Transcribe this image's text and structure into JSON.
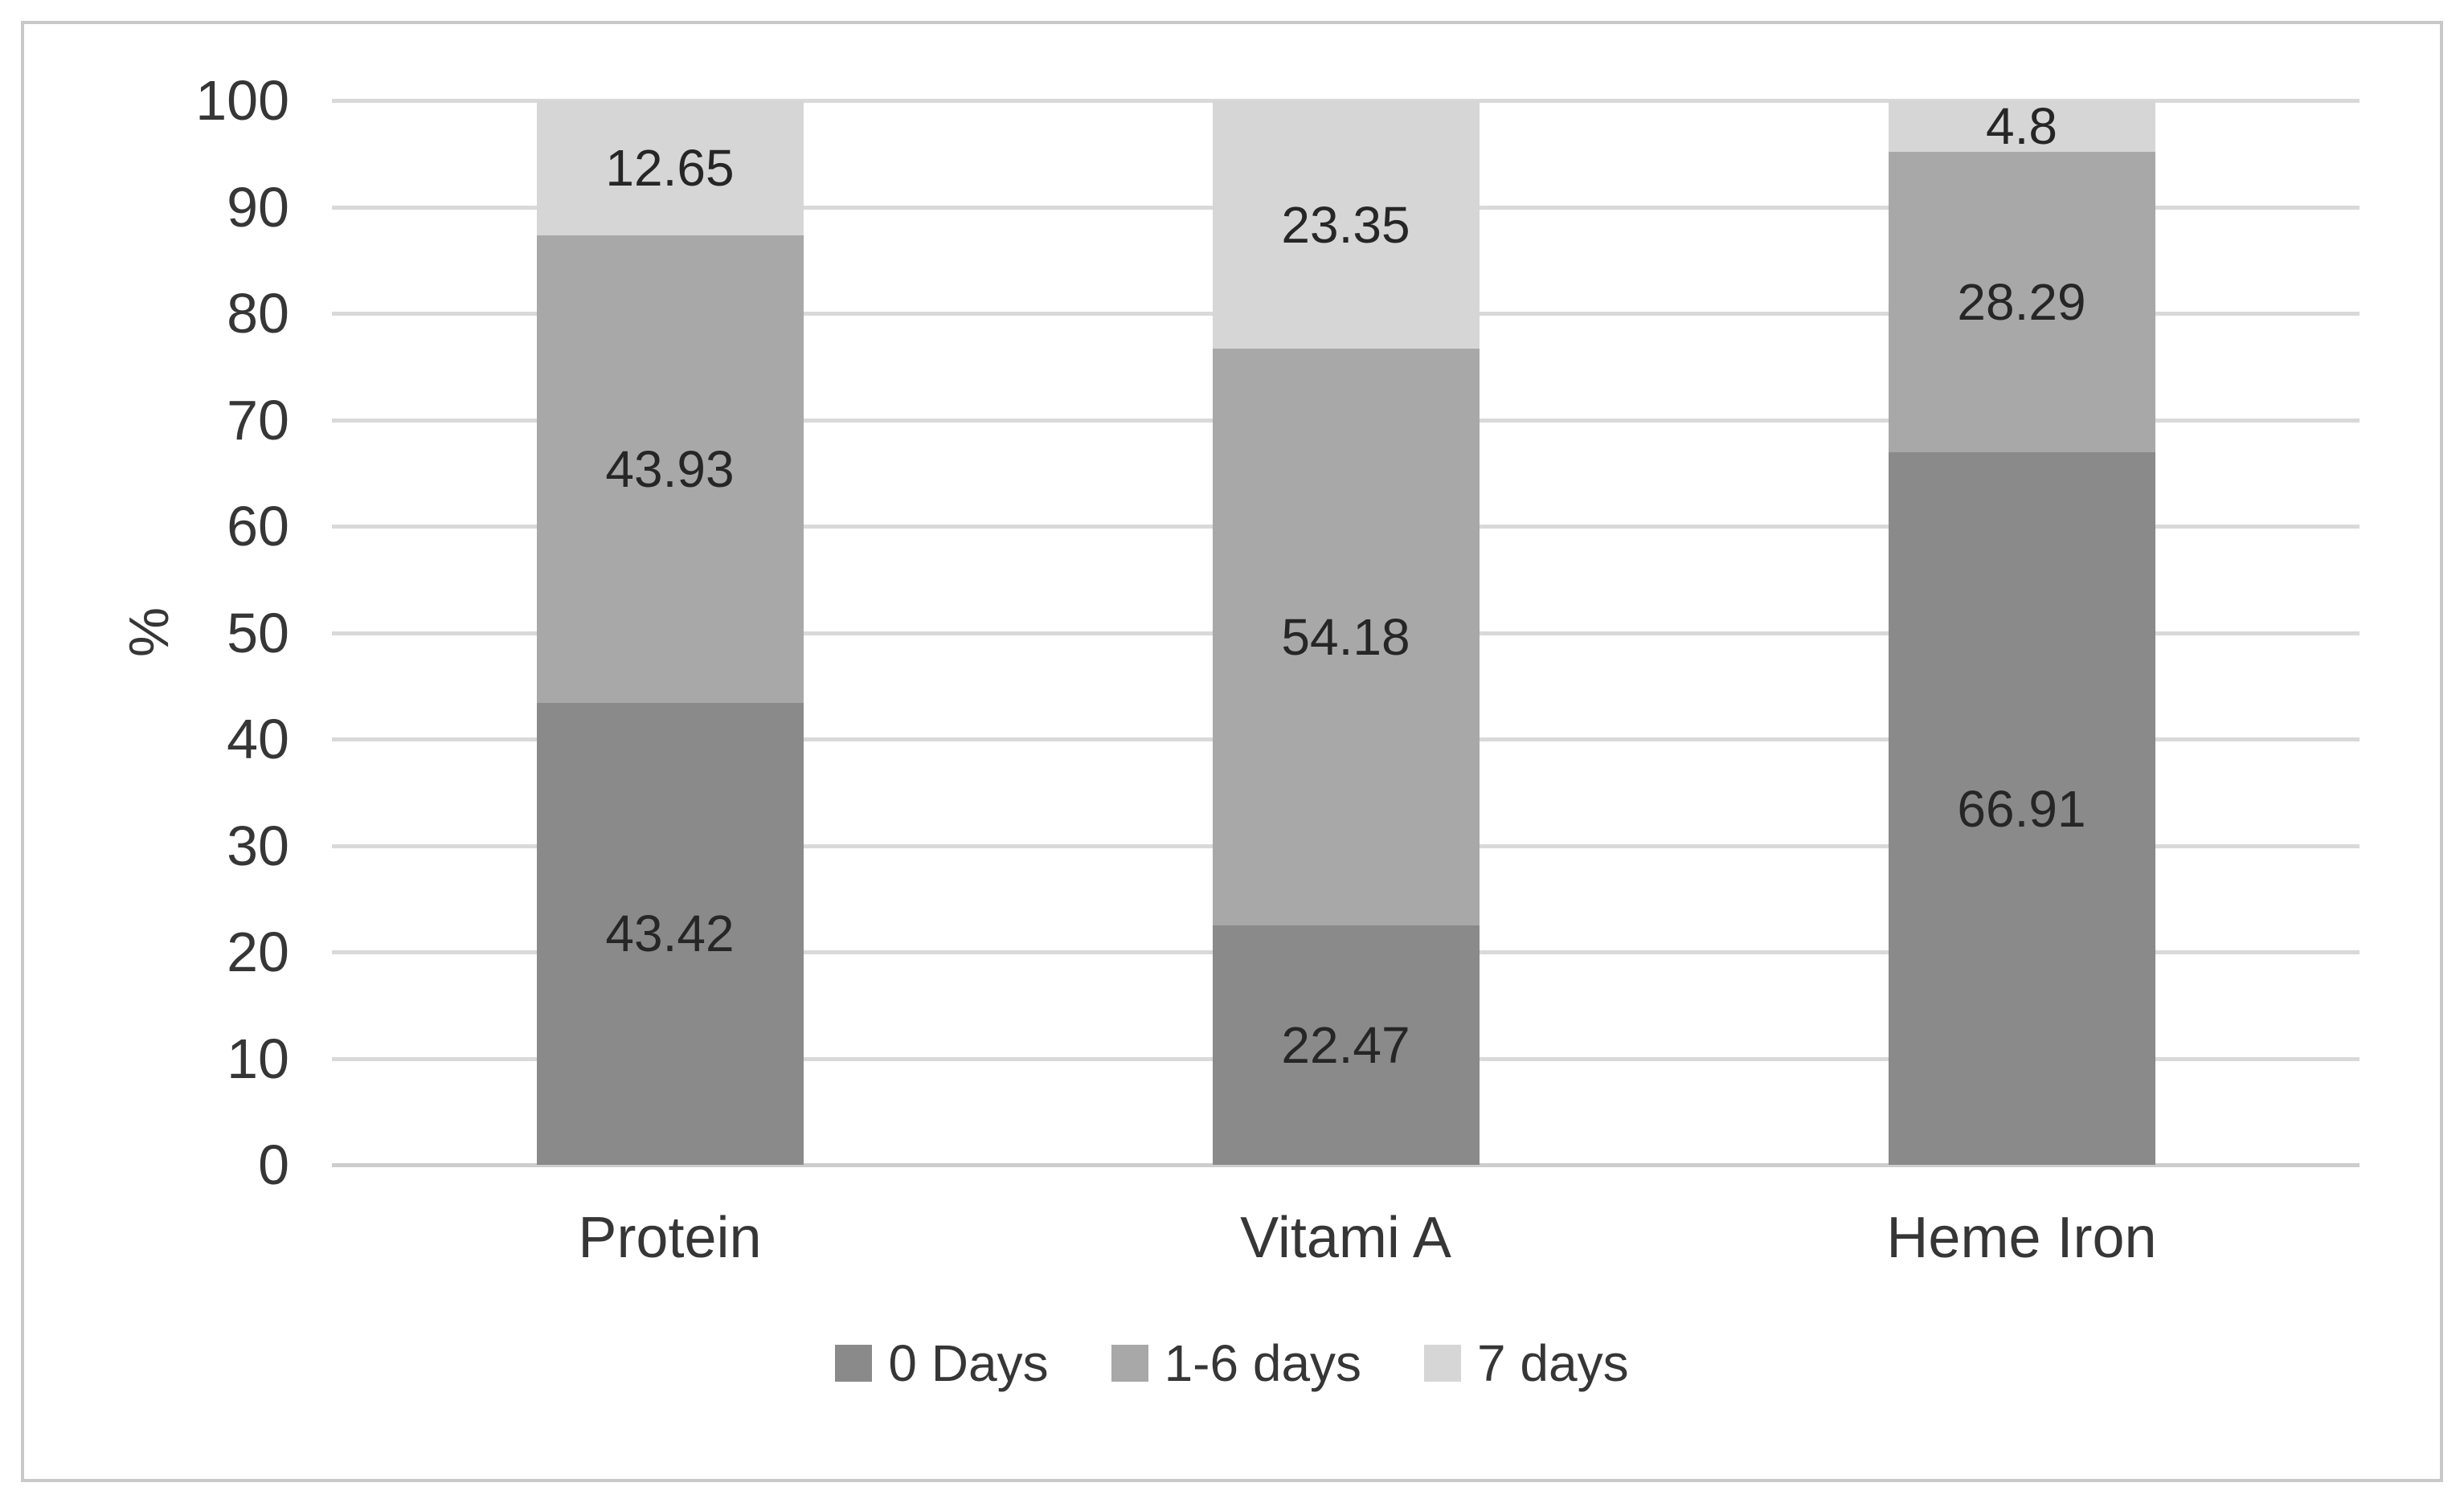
{
  "figure": {
    "background": "#ffffff",
    "border_color": "#c9c9c9"
  },
  "chart_data": {
    "type": "bar",
    "stacked": true,
    "title": "",
    "categories": [
      "Protein",
      "Vitami A",
      "Heme Iron"
    ],
    "series": [
      {
        "name": "0 Days",
        "color": "#8a8a8a",
        "values": [
          43.42,
          22.47,
          66.91
        ]
      },
      {
        "name": "1-6 days",
        "color": "#a8a8a8",
        "values": [
          43.93,
          54.18,
          28.29
        ]
      },
      {
        "name": "7 days",
        "color": "#d6d6d6",
        "values": [
          12.65,
          23.35,
          4.8
        ]
      }
    ],
    "data_labels": [
      "43.42",
      "43.93",
      "12.65",
      "22.47",
      "54.18",
      "23.35",
      "66.91",
      "28.29",
      "4.8"
    ],
    "xlabel": "",
    "ylabel": "%",
    "ylim": [
      0,
      100
    ],
    "yticks": [
      0,
      10,
      20,
      30,
      40,
      50,
      60,
      70,
      80,
      90,
      100
    ],
    "grid": true,
    "gridline_color": "#d9d9d9",
    "legend_position": "bottom",
    "legend_labels": [
      "0 Days",
      "1-6 days",
      "7 days"
    ],
    "text_color": "#363636",
    "data_label_color": "#262626"
  }
}
